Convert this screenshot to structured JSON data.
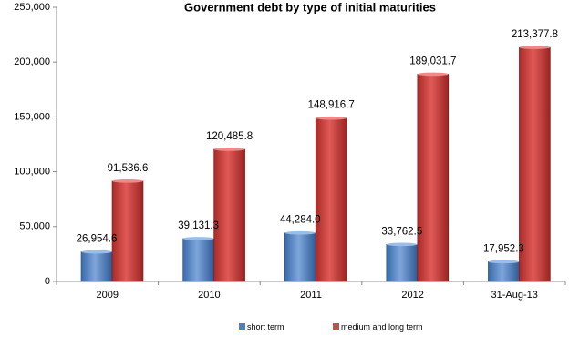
{
  "chart_data": {
    "type": "bar",
    "title": "Government debt by type of initial maturities",
    "categories": [
      "2009",
      "2010",
      "2011",
      "2012",
      "31-Aug-13"
    ],
    "series": [
      {
        "name": "short term",
        "values": [
          26954.6,
          39131.3,
          44284.0,
          33762.5,
          17952.3
        ],
        "labels": [
          "26,954.6",
          "39,131.3",
          "44,284.0",
          "33,762.5",
          "17,952.3"
        ],
        "color": "#4F81BD"
      },
      {
        "name": "medium and long term",
        "values": [
          91536.6,
          120485.8,
          148916.7,
          189031.7,
          213377.8
        ],
        "labels": [
          "91,536.6",
          "120,485.8",
          "148,916.7",
          "189,031.7",
          "213,377.8"
        ],
        "color": "#C0504D"
      }
    ],
    "ylim": [
      0,
      250000
    ],
    "yticks": [
      "0",
      "50,000",
      "100,000",
      "150,000",
      "200,000",
      "250,000"
    ],
    "legend_position": "bottom",
    "grid": false
  }
}
